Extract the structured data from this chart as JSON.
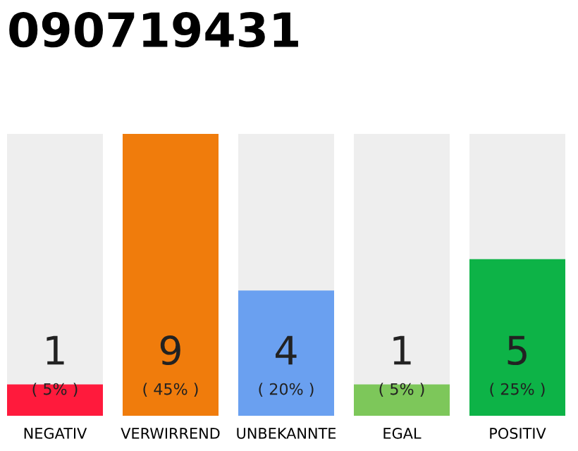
{
  "chart_data": {
    "type": "bar",
    "title": "090719431",
    "categories": [
      "NEGATIV",
      "VERWIRREND",
      "UNBEKANNTE",
      "EGAL",
      "POSITIV"
    ],
    "values": [
      1,
      9,
      4,
      1,
      5
    ],
    "colors": [
      "#ff1a3c",
      "#f07c0c",
      "#6aa0f0",
      "#7dc75a",
      "#0db347"
    ],
    "data_labels": true,
    "annotations": [
      "( 5% )",
      "( 45% )",
      "( 20% )",
      "( 5% )",
      "( 25% )"
    ],
    "tick_labels": "x",
    "grid": false,
    "legend": false
  }
}
